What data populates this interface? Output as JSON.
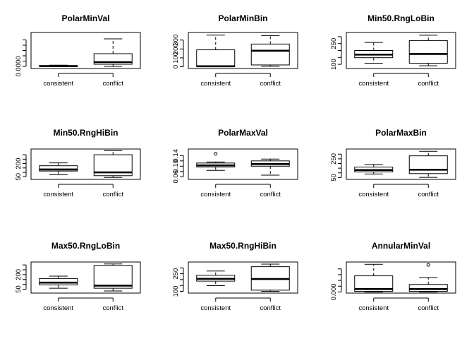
{
  "chart_data": [
    {
      "type": "box",
      "title": "PolarMinVal",
      "categories": [
        "consistent",
        "conflict"
      ],
      "ylim": [
        -2e-05,
        0.00032
      ],
      "yticks": [
        0.0
      ],
      "ytick_labels": [
        "0.0000"
      ],
      "ytick_marks": [
        0.0,
        5e-05,
        0.0001,
        0.00015,
        0.0002,
        0.00025
      ],
      "boxes": [
        {
          "min": 0.0,
          "q1": 0.0,
          "median": 2e-06,
          "q3": 8e-06,
          "max": 1.2e-05,
          "outliers": []
        },
        {
          "min": 0.0,
          "q1": 2e-05,
          "median": 4e-05,
          "q3": 0.00012,
          "max": 0.00026,
          "outliers": []
        }
      ]
    },
    {
      "type": "box",
      "title": "PolarMinBin",
      "categories": [
        "consistent",
        "conflict"
      ],
      "ylim": [
        -20,
        385
      ],
      "yticks": [
        0,
        100,
        200,
        300
      ],
      "ytick_labels": [
        "0",
        "100",
        "200",
        "300"
      ],
      "boxes": [
        {
          "min": 0,
          "q1": 0,
          "median": 5,
          "q3": 190,
          "max": 355,
          "outliers": []
        },
        {
          "min": 5,
          "q1": 20,
          "median": 180,
          "q3": 255,
          "max": 350,
          "outliers": []
        }
      ]
    },
    {
      "type": "box",
      "title": "Min50.RngLoBin",
      "categories": [
        "consistent",
        "conflict"
      ],
      "ylim": [
        70,
        330
      ],
      "yticks": [
        100,
        250
      ],
      "ytick_labels": [
        "100",
        "250"
      ],
      "ytick_marks": [
        100,
        150,
        200,
        250,
        300
      ],
      "boxes": [
        {
          "min": 108,
          "q1": 148,
          "median": 170,
          "q3": 200,
          "max": 258,
          "outliers": []
        },
        {
          "min": 90,
          "q1": 108,
          "median": 175,
          "q3": 272,
          "max": 310,
          "outliers": []
        }
      ]
    },
    {
      "type": "box",
      "title": "Min50.RngHiBin",
      "categories": [
        "consistent",
        "conflict"
      ],
      "ylim": [
        20,
        365
      ],
      "yticks": [
        50,
        200
      ],
      "ytick_labels": [
        "50",
        "200"
      ],
      "ytick_marks": [
        50,
        100,
        150,
        200,
        250,
        300
      ],
      "boxes": [
        {
          "min": 73,
          "q1": 115,
          "median": 133,
          "q3": 175,
          "max": 208,
          "outliers": []
        },
        {
          "min": 42,
          "q1": 62,
          "median": 100,
          "q3": 300,
          "max": 345,
          "outliers": []
        }
      ]
    },
    {
      "type": "box",
      "title": "PolarMaxVal",
      "categories": [
        "consistent",
        "conflict"
      ],
      "ylim": [
        0.05,
        0.165
      ],
      "yticks": [
        0.06,
        0.1,
        0.14
      ],
      "ytick_labels": [
        "0.06",
        "0.10",
        "0.14"
      ],
      "ytick_marks": [
        0.06,
        0.08,
        0.1,
        0.12,
        0.14
      ],
      "boxes": [
        {
          "min": 0.084,
          "q1": 0.097,
          "median": 0.103,
          "q3": 0.112,
          "max": 0.116,
          "outliers": [
            0.147
          ]
        },
        {
          "min": 0.066,
          "q1": 0.1,
          "median": 0.108,
          "q3": 0.12,
          "max": 0.127,
          "outliers": []
        }
      ]
    },
    {
      "type": "box",
      "title": "PolarMaxBin",
      "categories": [
        "consistent",
        "conflict"
      ],
      "ylim": [
        30,
        355
      ],
      "yticks": [
        50,
        250
      ],
      "ytick_labels": [
        "50",
        "250"
      ],
      "ytick_marks": [
        50,
        100,
        150,
        200,
        250,
        300
      ],
      "boxes": [
        {
          "min": 88,
          "q1": 110,
          "median": 130,
          "q3": 162,
          "max": 190,
          "outliers": []
        },
        {
          "min": 52,
          "q1": 92,
          "median": 133,
          "q3": 282,
          "max": 330,
          "outliers": []
        }
      ]
    },
    {
      "type": "box",
      "title": "Max50.RngLoBin",
      "categories": [
        "consistent",
        "conflict"
      ],
      "ylim": [
        10,
        330
      ],
      "yticks": [
        50,
        200
      ],
      "ytick_labels": [
        "50",
        "200"
      ],
      "ytick_marks": [
        50,
        100,
        150,
        200,
        250,
        300
      ],
      "boxes": [
        {
          "min": 60,
          "q1": 95,
          "median": 118,
          "q3": 160,
          "max": 185,
          "outliers": []
        },
        {
          "min": 32,
          "q1": 60,
          "median": 87,
          "q3": 295,
          "max": 310,
          "outliers": []
        }
      ]
    },
    {
      "type": "box",
      "title": "Max50.RngHiBin",
      "categories": [
        "consistent",
        "conflict"
      ],
      "ylim": [
        85,
        350
      ],
      "yticks": [
        100,
        250
      ],
      "ytick_labels": [
        "100",
        "250"
      ],
      "ytick_marks": [
        100,
        150,
        200,
        250,
        300
      ],
      "boxes": [
        {
          "min": 148,
          "q1": 187,
          "median": 207,
          "q3": 237,
          "max": 273,
          "outliers": []
        },
        {
          "min": 100,
          "q1": 110,
          "median": 205,
          "q3": 310,
          "max": 332,
          "outliers": []
        }
      ]
    },
    {
      "type": "box",
      "title": "AnnularMinVal",
      "categories": [
        "consistent",
        "conflict"
      ],
      "ylim": [
        -0.0002,
        0.0052
      ],
      "yticks": [
        0.0
      ],
      "ytick_labels": [
        "0.000"
      ],
      "ytick_marks": [
        0.0,
        0.001,
        0.002,
        0.003,
        0.004
      ],
      "boxes": [
        {
          "min": 0.0,
          "q1": 0.0001,
          "median": 0.0005,
          "q3": 0.0028,
          "max": 0.0048,
          "outliers": []
        },
        {
          "min": 0.0,
          "q1": 0.0001,
          "median": 0.0005,
          "q3": 0.0013,
          "max": 0.0025,
          "outliers": [
            0.0047
          ]
        }
      ]
    }
  ]
}
